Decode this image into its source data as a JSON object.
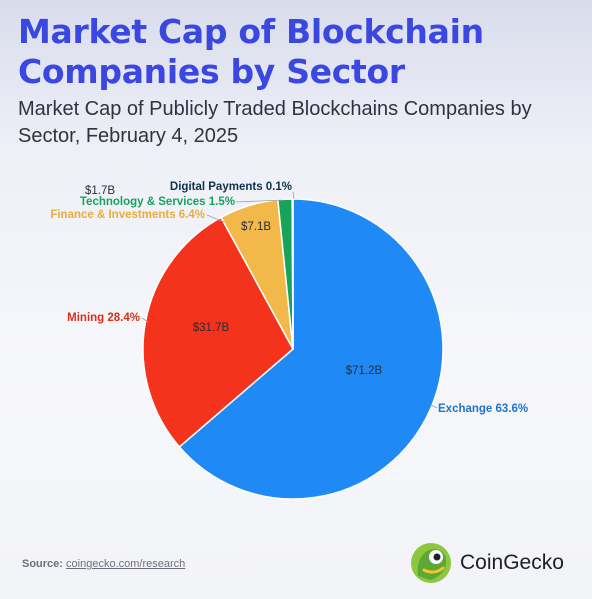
{
  "header": {
    "title": "Market Cap of Blockchain Companies by Sector",
    "subtitle": "Market Cap of Publicly Traded Blockchains Companies by Sector, February 4, 2025"
  },
  "chart_data": {
    "type": "pie",
    "slices": [
      {
        "label": "Exchange 63.6%",
        "value_label": "$71.2B",
        "value": 71.2,
        "color": "#1f8af5",
        "label_color": "#1f73c8"
      },
      {
        "label": "Mining 28.4%",
        "value_label": "$31.7B",
        "value": 31.7,
        "color": "#f4331c",
        "label_color": "#d6301c"
      },
      {
        "label": "Finance & Investments 6.4%",
        "value_label": "$7.1B",
        "value": 7.1,
        "color": "#f2b84a",
        "label_color": "#e9ac3c"
      },
      {
        "label": "Technology & Services 1.5%",
        "value_label": "$1.7B",
        "value": 1.7,
        "color": "#17a35a",
        "label_color": "#17a35a"
      },
      {
        "label": "Digital Payments 0.1%",
        "value_label": "",
        "value": 0.1,
        "color": "#10324a",
        "label_color": "#10324a"
      }
    ]
  },
  "footer": {
    "source_prefix": "Source:",
    "source_link": "coingecko.com/research",
    "brand": "CoinGecko"
  }
}
